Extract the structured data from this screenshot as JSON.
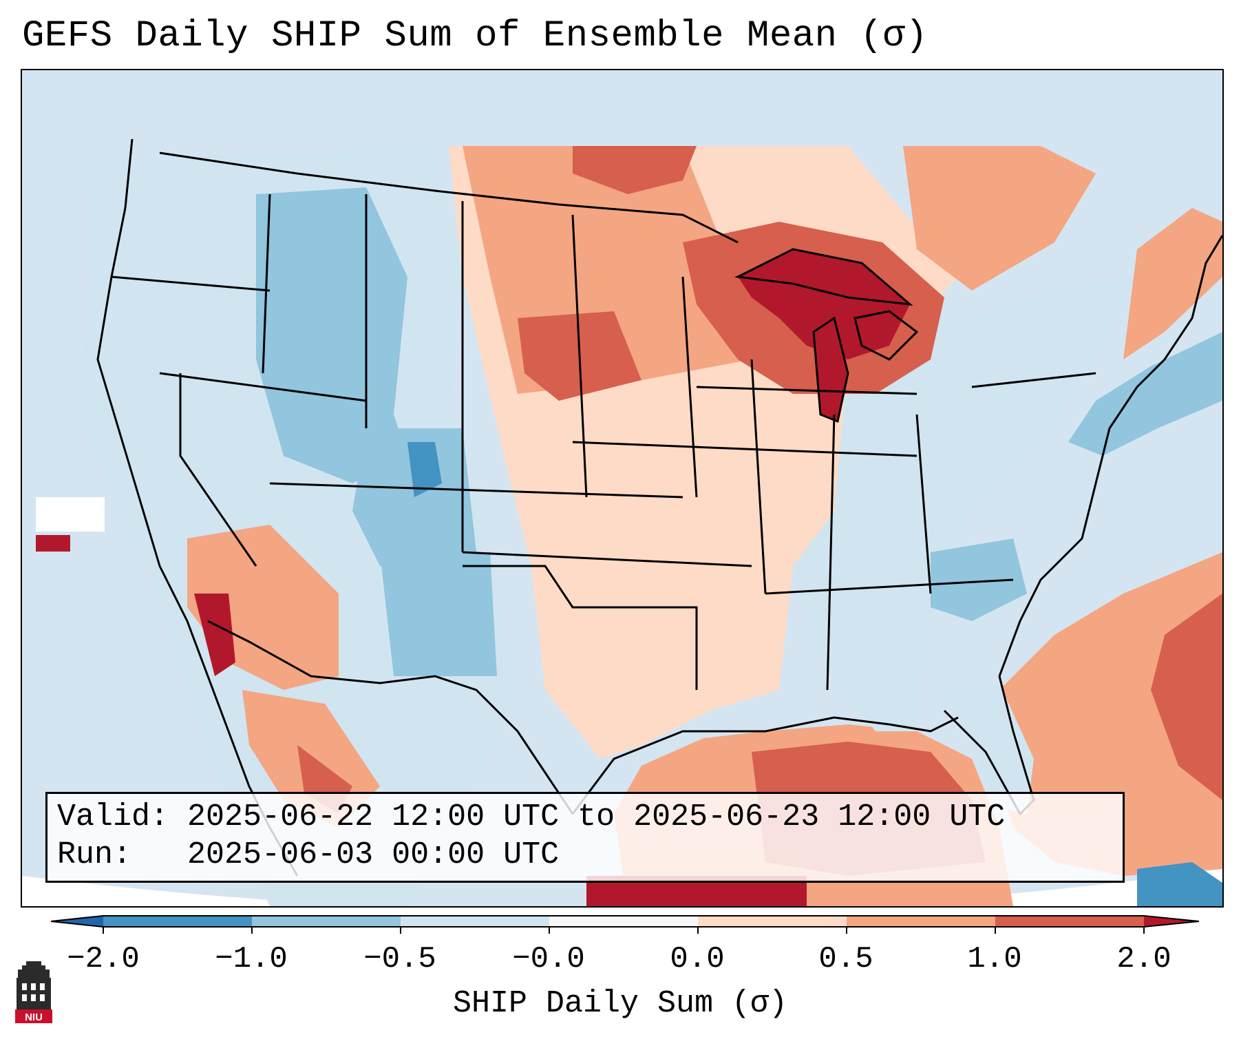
{
  "title": "GEFS Daily SHIP Sum of Ensemble Mean (σ)",
  "info": {
    "valid_label": "Valid:",
    "valid_value": "2025-06-22 12:00 UTC to 2025-06-23 12:00 UTC",
    "run_label": "Run:",
    "run_value": "2025-06-03 00:00 UTC"
  },
  "colorbar": {
    "title": "SHIP Daily Sum (σ)",
    "tick_labels": [
      "−2.0",
      "−1.0",
      "−0.5",
      "−0.0",
      "0.0",
      "0.5",
      "1.0",
      "2.0"
    ],
    "bin_colors": [
      "#4393c3",
      "#92c5de",
      "#d1e5f0",
      "#f7f7f7",
      "#fddbc7",
      "#f4a582",
      "#d6604d"
    ],
    "extend_min_color": "#2166ac",
    "extend_max_color": "#b2182b"
  },
  "map": {
    "ocean_color": "#d4e5f1",
    "boundary_color": "#000000"
  },
  "logo": {
    "text": "NIU",
    "color": "#c8102e"
  }
}
